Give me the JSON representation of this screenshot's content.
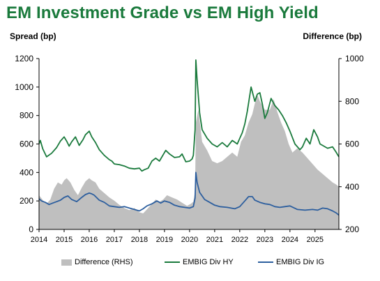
{
  "chart_data": {
    "type": "line",
    "title": "EM Investment Grade vs EM High Yield",
    "ylabel": "Spread (bp)",
    "y2label": "Difference (bp)",
    "ylim": [
      0,
      1200
    ],
    "y2lim": [
      200,
      1000
    ],
    "xlim": [
      2014.0,
      2025.95
    ],
    "x_ticks": [
      "2014",
      "2015",
      "2016",
      "2017",
      "2018",
      "2019",
      "2020",
      "2021",
      "2022",
      "2023",
      "2024",
      "2025"
    ],
    "y_ticks": [
      0,
      200,
      400,
      600,
      800,
      1000,
      1200
    ],
    "y2_ticks": [
      200,
      400,
      600,
      800,
      1000
    ],
    "legend_position": "bottom",
    "series": [
      {
        "name": "Difference (RHS)",
        "type": "area",
        "axis": "right",
        "color": "#bfbfbf",
        "x": [
          2014.0,
          2014.1,
          2014.2,
          2014.3,
          2014.45,
          2014.6,
          2014.75,
          2014.9,
          2015.0,
          2015.1,
          2015.25,
          2015.4,
          2015.55,
          2015.7,
          2015.85,
          2016.0,
          2016.1,
          2016.25,
          2016.4,
          2016.6,
          2016.8,
          2017.0,
          2017.2,
          2017.4,
          2017.6,
          2017.8,
          2018.0,
          2018.15,
          2018.35,
          2018.5,
          2018.65,
          2018.8,
          2018.95,
          2019.1,
          2019.3,
          2019.5,
          2019.7,
          2019.9,
          2020.05,
          2020.15,
          2020.22,
          2020.25,
          2020.35,
          2020.5,
          2020.7,
          2020.9,
          2021.1,
          2021.3,
          2021.5,
          2021.7,
          2021.9,
          2022.05,
          2022.2,
          2022.35,
          2022.5,
          2022.6,
          2022.7,
          2022.8,
          2022.9,
          2023.0,
          2023.2,
          2023.35,
          2023.5,
          2023.65,
          2023.8,
          2023.95,
          2024.1,
          2024.3,
          2024.5,
          2024.65,
          2024.8,
          2024.95,
          2025.1,
          2025.3,
          2025.5,
          2025.7,
          2025.85,
          2025.95
        ],
        "values": [
          360,
          345,
          330,
          320,
          340,
          390,
          420,
          410,
          430,
          440,
          420,
          385,
          360,
          395,
          425,
          440,
          430,
          420,
          390,
          370,
          350,
          335,
          315,
          300,
          290,
          300,
          280,
          275,
          300,
          320,
          340,
          330,
          340,
          360,
          350,
          340,
          325,
          310,
          320,
          330,
          380,
          700,
          760,
          610,
          570,
          520,
          510,
          520,
          540,
          560,
          540,
          610,
          640,
          700,
          740,
          790,
          830,
          800,
          780,
          760,
          760,
          810,
          750,
          700,
          660,
          600,
          560,
          580,
          560,
          540,
          520,
          500,
          480,
          460,
          440,
          420,
          410,
          400
        ]
      },
      {
        "name": "EMBIG Div HY",
        "type": "line",
        "axis": "left",
        "color": "#1a7a3c",
        "x": [
          2014.0,
          2014.05,
          2014.15,
          2014.3,
          2014.5,
          2014.7,
          2014.85,
          2015.0,
          2015.1,
          2015.2,
          2015.3,
          2015.45,
          2015.6,
          2015.75,
          2015.85,
          2016.0,
          2016.1,
          2016.25,
          2016.4,
          2016.6,
          2016.8,
          2016.9,
          2017.0,
          2017.2,
          2017.4,
          2017.6,
          2017.8,
          2018.0,
          2018.1,
          2018.2,
          2018.35,
          2018.5,
          2018.65,
          2018.8,
          2018.95,
          2019.05,
          2019.2,
          2019.4,
          2019.6,
          2019.7,
          2019.85,
          2020.0,
          2020.1,
          2020.15,
          2020.22,
          2020.25,
          2020.3,
          2020.4,
          2020.5,
          2020.7,
          2020.9,
          2021.1,
          2021.3,
          2021.5,
          2021.7,
          2021.9,
          2022.0,
          2022.1,
          2022.2,
          2022.3,
          2022.45,
          2022.6,
          2022.7,
          2022.8,
          2022.9,
          2023.0,
          2023.1,
          2023.25,
          2023.4,
          2023.55,
          2023.7,
          2023.85,
          2024.0,
          2024.2,
          2024.4,
          2024.5,
          2024.65,
          2024.8,
          2024.95,
          2025.1,
          2025.2,
          2025.3,
          2025.5,
          2025.7,
          2025.85,
          2025.95
        ],
        "values": [
          600,
          625,
          565,
          510,
          535,
          575,
          620,
          650,
          620,
          585,
          615,
          650,
          590,
          630,
          665,
          690,
          650,
          610,
          560,
          520,
          490,
          480,
          460,
          455,
          445,
          430,
          425,
          430,
          410,
          420,
          430,
          480,
          500,
          480,
          525,
          555,
          530,
          505,
          510,
          530,
          475,
          480,
          495,
          520,
          700,
          1190,
          1050,
          820,
          700,
          640,
          600,
          580,
          610,
          580,
          625,
          600,
          640,
          680,
          740,
          830,
          1000,
          900,
          950,
          960,
          880,
          780,
          820,
          920,
          870,
          840,
          800,
          750,
          690,
          600,
          560,
          580,
          640,
          600,
          700,
          650,
          600,
          590,
          570,
          580,
          540,
          510
        ]
      },
      {
        "name": "EMBIG Div IG",
        "type": "line",
        "axis": "left",
        "color": "#2c5e9e",
        "x": [
          2014.0,
          2014.1,
          2014.25,
          2014.4,
          2014.55,
          2014.7,
          2014.85,
          2015.0,
          2015.15,
          2015.3,
          2015.5,
          2015.7,
          2015.85,
          2016.0,
          2016.1,
          2016.2,
          2016.4,
          2016.6,
          2016.8,
          2017.0,
          2017.2,
          2017.4,
          2017.6,
          2017.8,
          2018.0,
          2018.15,
          2018.3,
          2018.5,
          2018.7,
          2018.85,
          2019.0,
          2019.2,
          2019.4,
          2019.6,
          2019.8,
          2020.0,
          2020.15,
          2020.22,
          2020.25,
          2020.3,
          2020.4,
          2020.6,
          2020.8,
          2021.0,
          2021.2,
          2021.5,
          2021.8,
          2022.0,
          2022.2,
          2022.35,
          2022.5,
          2022.6,
          2022.8,
          2023.0,
          2023.2,
          2023.4,
          2023.6,
          2023.8,
          2024.0,
          2024.3,
          2024.6,
          2024.9,
          2025.1,
          2025.3,
          2025.5,
          2025.7,
          2025.85,
          2025.95
        ],
        "values": [
          215,
          200,
          190,
          175,
          185,
          195,
          205,
          225,
          235,
          210,
          195,
          225,
          245,
          255,
          250,
          240,
          205,
          190,
          165,
          160,
          155,
          160,
          150,
          140,
          130,
          145,
          165,
          180,
          200,
          185,
          200,
          190,
          170,
          160,
          155,
          150,
          160,
          220,
          400,
          330,
          260,
          210,
          190,
          170,
          160,
          155,
          145,
          160,
          200,
          230,
          230,
          205,
          190,
          180,
          175,
          160,
          155,
          160,
          165,
          140,
          135,
          140,
          135,
          150,
          145,
          130,
          115,
          100
        ]
      }
    ]
  }
}
